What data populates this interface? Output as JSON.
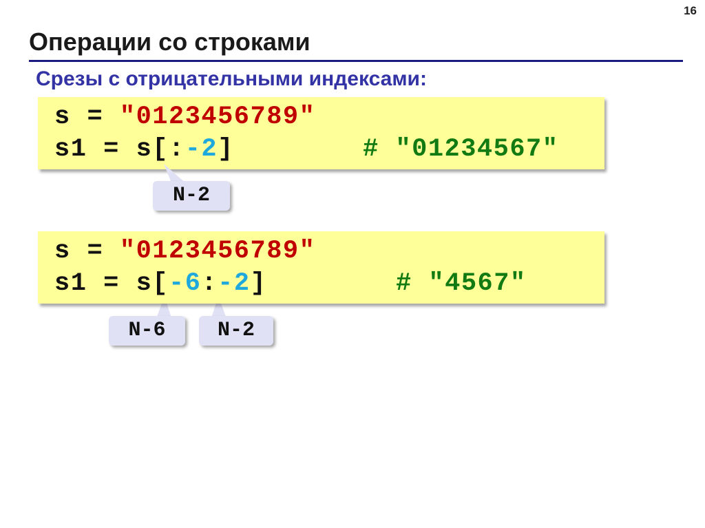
{
  "page_number": "16",
  "title": "Операции со строками",
  "subtitle": "Срезы с отрицательными индексами:",
  "examples": [
    {
      "line1": {
        "var": "s",
        "eq": "=",
        "value": "\"0123456789\""
      },
      "line2": {
        "var": "s1",
        "eq": "=",
        "prefix": "s[:",
        "index1": "",
        "sep": "",
        "index2": "-2",
        "suffix": "]",
        "comment": "# \"01234567\""
      },
      "callouts": [
        "N-2"
      ]
    },
    {
      "line1": {
        "var": "s",
        "eq": "=",
        "value": "\"0123456789\""
      },
      "line2": {
        "var": "s1",
        "eq": "=",
        "prefix": "s[",
        "index1": "-6",
        "sep": ":",
        "index2": "-2",
        "suffix": "]",
        "comment": "# \"4567\""
      },
      "callouts": [
        "N-6",
        "N-2"
      ]
    }
  ],
  "colors": {
    "background": "#ffffff",
    "code_bg": "#ffff99",
    "string": "#c00000",
    "index": "#1fa8dc",
    "comment": "#127a12",
    "callout_bg": "#e1e1f5",
    "rule": "#1a1a80",
    "subtitle": "#3333a6"
  }
}
